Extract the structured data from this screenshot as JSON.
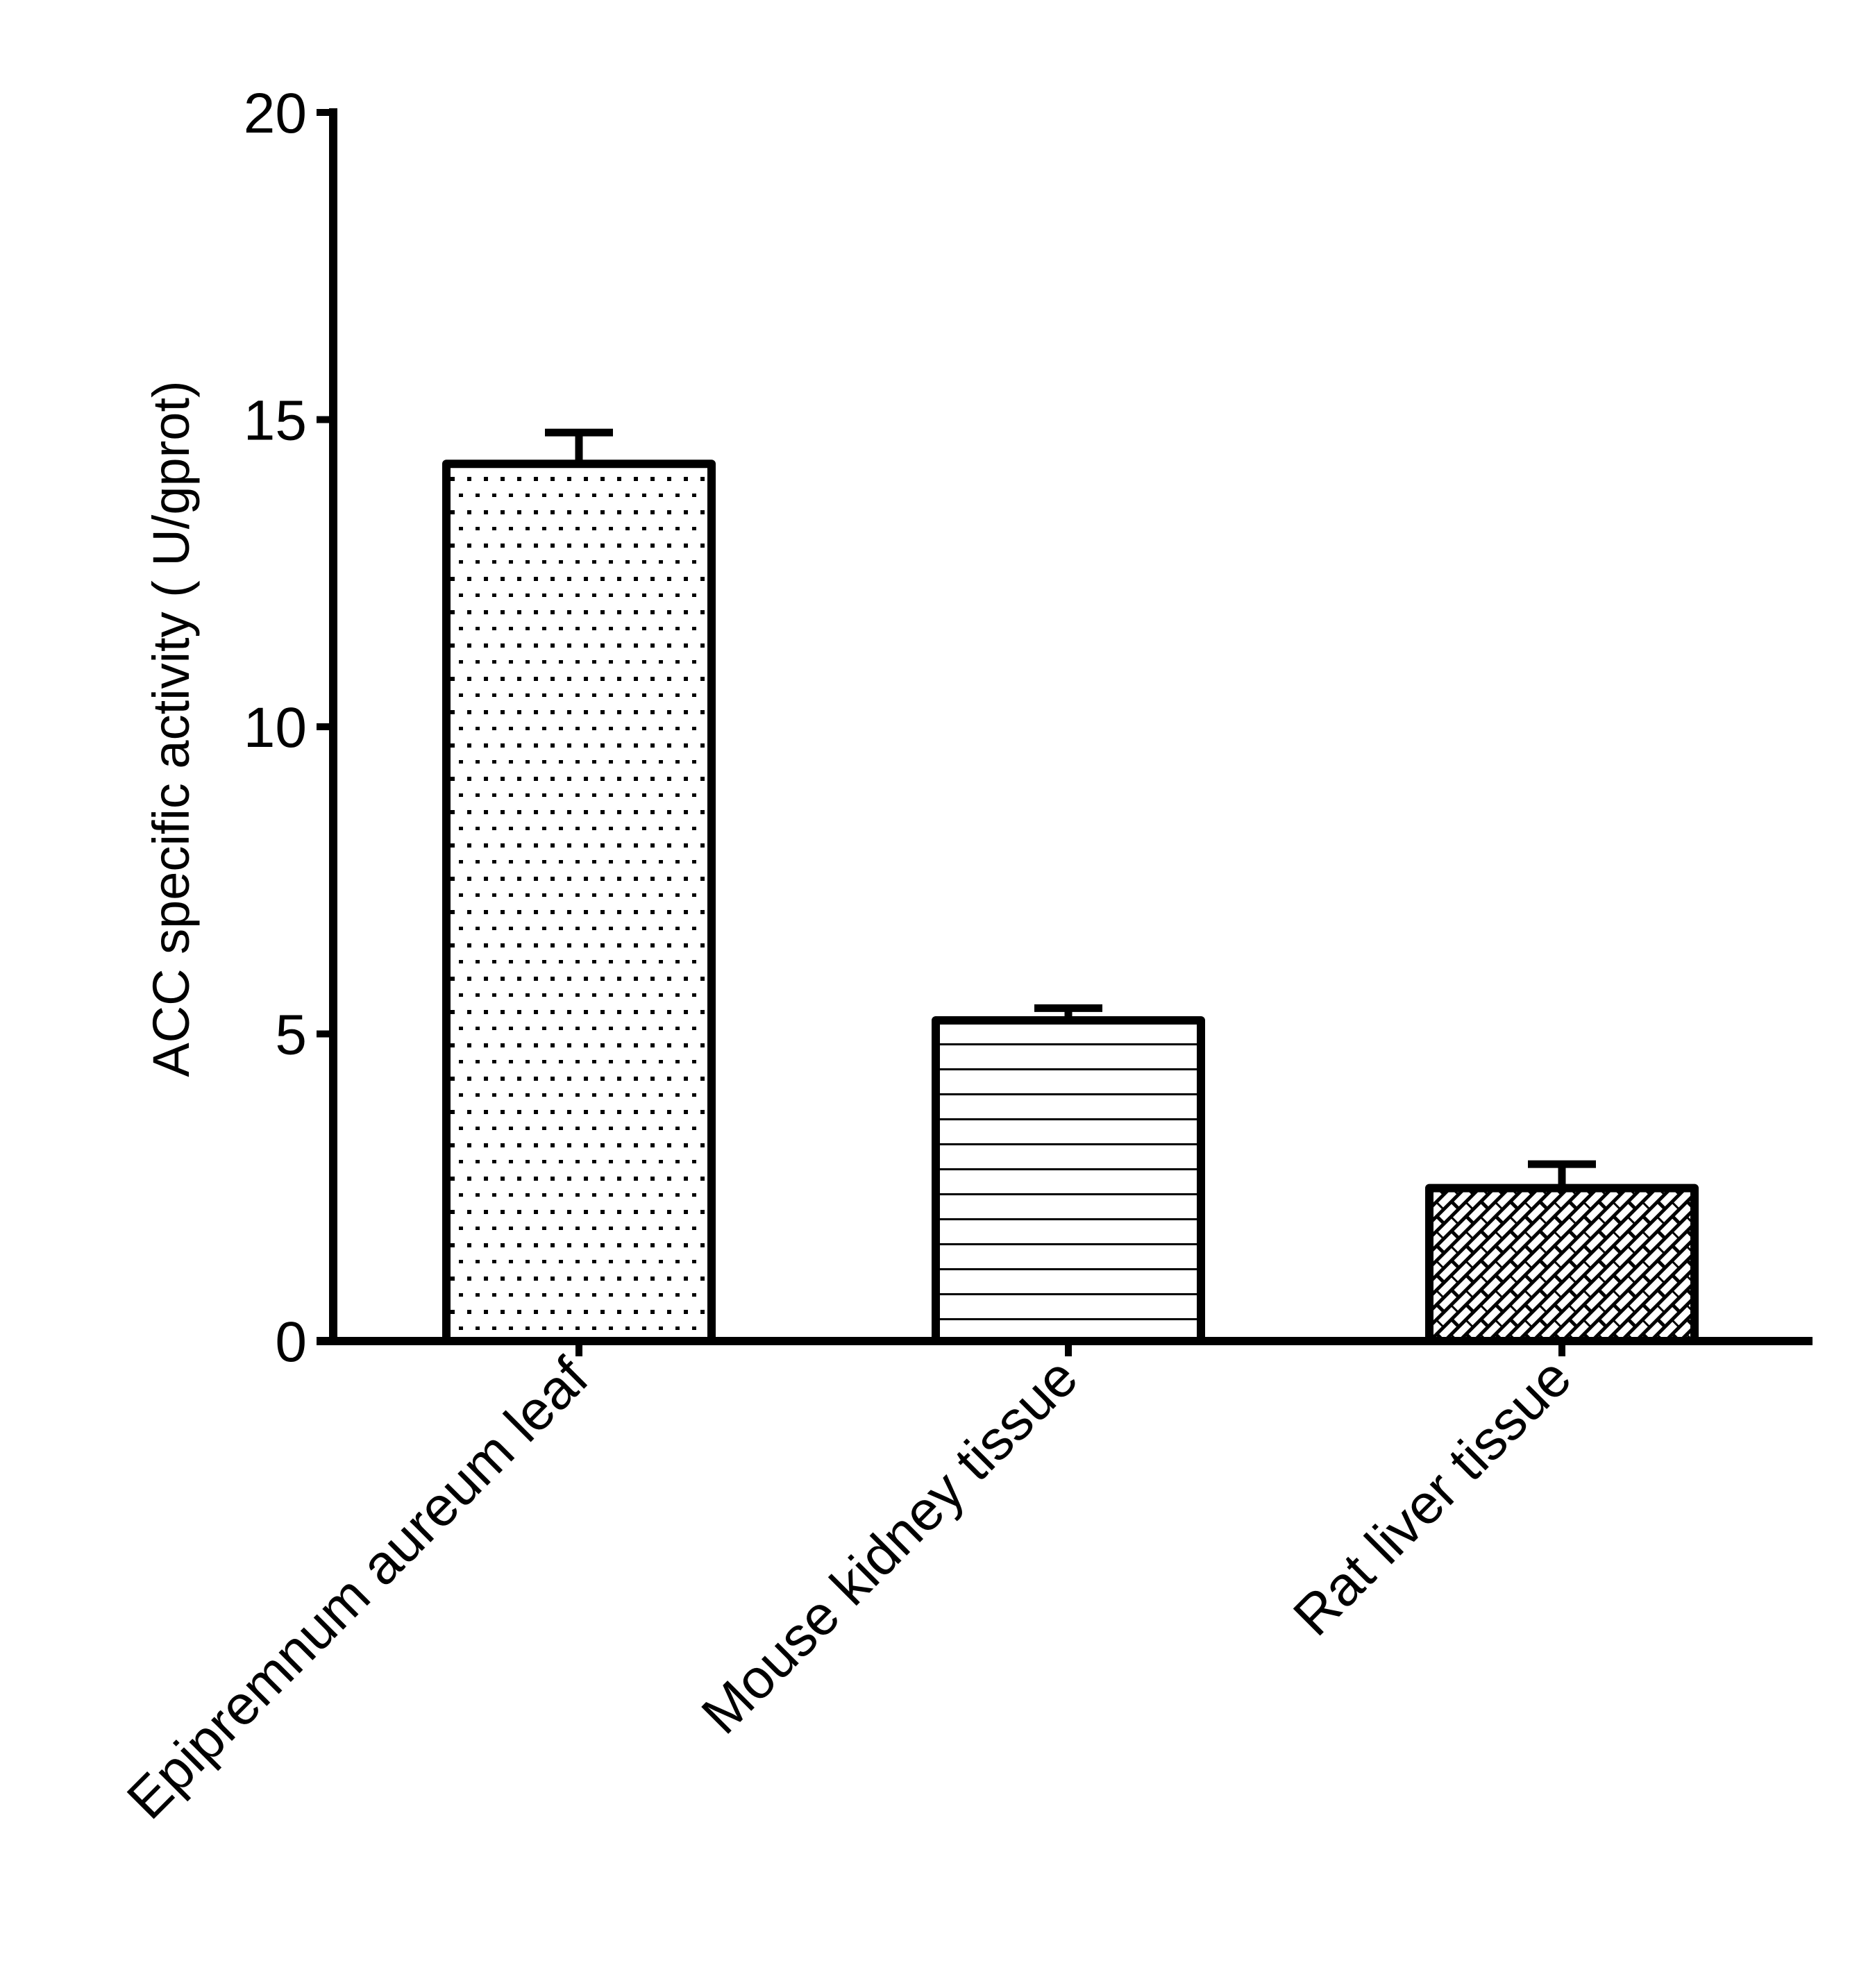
{
  "chart_data": {
    "type": "bar",
    "title": "",
    "xlabel": "",
    "ylabel": "ACC specific activity ( U/gprot)",
    "ylim": [
      0,
      20
    ],
    "yticks": [
      0,
      5,
      10,
      15,
      20
    ],
    "ytick_labels": [
      "0",
      "5",
      "10",
      "15",
      "20"
    ],
    "categories": [
      "Epipremnum aureum leaf",
      "Mouse kidney tissue",
      "Rat liver tissue"
    ],
    "values": [
      14.28,
      5.22,
      2.49
    ],
    "error_upper": [
      14.79,
      5.42,
      2.88
    ],
    "errors": [
      0.51,
      0.2,
      0.39
    ],
    "fill_patterns": [
      "dots",
      "horizontal-lines",
      "diagonal-brick-hatch"
    ],
    "bar_edge_color": "#000000",
    "bar_fill_color": "#ffffff",
    "grid": false,
    "legend": null,
    "x_label_rotation": -45
  }
}
